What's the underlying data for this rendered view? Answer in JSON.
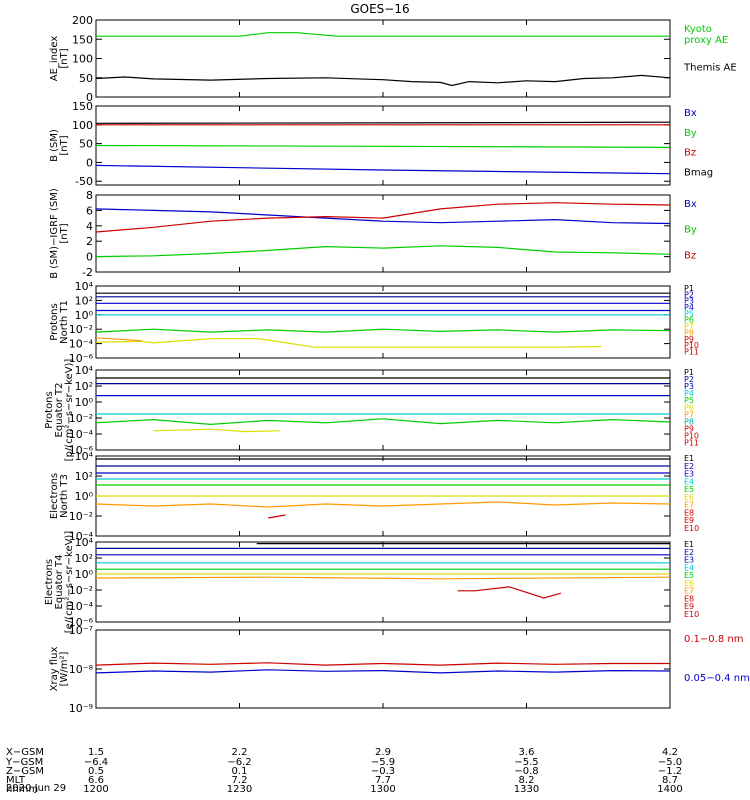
{
  "title": "GOES−16",
  "date_label": "2020 Jun 29",
  "colors": {
    "black": "#000000",
    "blue": "#0000cc",
    "green": "#00cc00",
    "red": "#cc0000",
    "cyan": "#00cccc",
    "yellow": "#dddd00",
    "orange": "#ff9900",
    "navy": "#000099",
    "purple": "#9900cc",
    "teal": "#00aaaa"
  },
  "chart_data": [
    {
      "type": "line",
      "ylabel": "AE_index\n[nT]",
      "ylim": [
        0,
        200
      ],
      "yscale": "linear",
      "yticks": [
        0,
        50,
        100,
        150,
        200
      ],
      "legend_placement": "right",
      "series": [
        {
          "name": "Kyoto\nproxy AE",
          "color": "#00cc00",
          "x": [
            0,
            0.25,
            0.3,
            0.35,
            0.42,
            1
          ],
          "y": [
            158,
            158,
            167,
            167,
            158,
            158
          ]
        },
        {
          "name": "Themis AE",
          "color": "#000000",
          "x": [
            0,
            0.05,
            0.1,
            0.2,
            0.3,
            0.4,
            0.5,
            0.55,
            0.6,
            0.62,
            0.65,
            0.7,
            0.75,
            0.8,
            0.85,
            0.9,
            0.95,
            1
          ],
          "y": [
            48,
            52,
            47,
            44,
            48,
            50,
            45,
            40,
            38,
            30,
            40,
            37,
            42,
            40,
            48,
            50,
            56,
            50
          ]
        }
      ]
    },
    {
      "type": "line",
      "ylabel": "B (SM)\n[nT]",
      "ylim": [
        -60,
        150
      ],
      "yscale": "linear",
      "yticks": [
        -50,
        0,
        50,
        100,
        150
      ],
      "legend_placement": "right",
      "series": [
        {
          "name": "Bx",
          "color": "#0000cc",
          "x": [
            0,
            0.5,
            1
          ],
          "y": [
            -8,
            -20,
            -30
          ]
        },
        {
          "name": "By",
          "color": "#00cc00",
          "x": [
            0,
            0.5,
            1
          ],
          "y": [
            45,
            43,
            40
          ]
        },
        {
          "name": "Bz",
          "color": "#cc0000",
          "x": [
            0,
            0.5,
            1
          ],
          "y": [
            100,
            100,
            100
          ]
        },
        {
          "name": "Bmag",
          "color": "#000000",
          "x": [
            0,
            0.5,
            1
          ],
          "y": [
            104,
            105,
            107
          ]
        }
      ]
    },
    {
      "type": "line",
      "ylabel": "B (SM)−IGRF (SM)\n[nT]",
      "ylim": [
        -2,
        8
      ],
      "yscale": "linear",
      "yticks": [
        -2,
        0,
        2,
        4,
        6,
        8
      ],
      "legend_placement": "right",
      "series": [
        {
          "name": "Bx",
          "color": "#0000cc",
          "x": [
            0,
            0.1,
            0.2,
            0.3,
            0.4,
            0.5,
            0.6,
            0.7,
            0.8,
            0.9,
            1
          ],
          "y": [
            6.2,
            6.0,
            5.8,
            5.4,
            5.0,
            4.6,
            4.4,
            4.6,
            4.8,
            4.4,
            4.3
          ]
        },
        {
          "name": "By",
          "color": "#00cc00",
          "x": [
            0,
            0.1,
            0.2,
            0.3,
            0.4,
            0.5,
            0.6,
            0.7,
            0.8,
            0.9,
            1
          ],
          "y": [
            0.0,
            0.1,
            0.4,
            0.8,
            1.3,
            1.1,
            1.4,
            1.2,
            0.6,
            0.5,
            0.3
          ]
        },
        {
          "name": "Bz",
          "color": "#cc0000",
          "x": [
            0,
            0.1,
            0.2,
            0.3,
            0.4,
            0.5,
            0.6,
            0.7,
            0.8,
            0.9,
            1
          ],
          "y": [
            3.2,
            3.8,
            4.6,
            5.0,
            5.2,
            5.0,
            6.2,
            6.8,
            7.0,
            6.8,
            6.7
          ]
        }
      ]
    },
    {
      "type": "line",
      "ylabel": "Protons\nNorth T1",
      "ylim": [
        -6,
        4
      ],
      "yscale": "log",
      "yticks": [
        -6,
        -4,
        -2,
        0,
        2,
        4
      ],
      "legend_placement": "right",
      "series": [
        {
          "name": "P1",
          "color": "#000000",
          "x": [
            0,
            1
          ],
          "y": [
            3.0,
            3.0
          ]
        },
        {
          "name": "P2",
          "color": "#000099",
          "x": [
            0,
            1
          ],
          "y": [
            2.5,
            2.5
          ]
        },
        {
          "name": "P3",
          "color": "#0000cc",
          "x": [
            0,
            1
          ],
          "y": [
            1.6,
            1.6
          ]
        },
        {
          "name": "P4",
          "color": "#0000cc",
          "x": [
            0,
            1
          ],
          "y": [
            0.6,
            0.6
          ]
        },
        {
          "name": "P5",
          "color": "#00cccc",
          "x": [
            0,
            1
          ],
          "y": [
            0.0,
            0.0
          ]
        },
        {
          "name": "P6",
          "color": "#00cc00",
          "x": [
            0,
            0.1,
            0.2,
            0.3,
            0.4,
            0.5,
            0.6,
            0.7,
            0.8,
            0.9,
            1
          ],
          "y": [
            -2.4,
            -2.0,
            -2.4,
            -2.1,
            -2.4,
            -2.0,
            -2.3,
            -2.1,
            -2.4,
            -2.1,
            -2.2
          ]
        },
        {
          "name": "P7",
          "color": "#dddd00",
          "x": [
            0.0,
            0.08,
            0.1,
            0.2,
            0.28,
            0.3,
            0.38,
            0.8,
            0.88
          ],
          "y": [
            -3.8,
            -3.7,
            -3.9,
            -3.3,
            -3.3,
            -3.5,
            -4.5,
            -4.5,
            -4.4
          ]
        },
        {
          "name": "P8",
          "color": "#ff9900",
          "x": [
            0,
            0.08
          ],
          "y": [
            -3.2,
            -3.6
          ]
        },
        {
          "name": "P9",
          "color": "#cc0000",
          "x": [],
          "y": []
        },
        {
          "name": "P10",
          "color": "#cc0000",
          "x": [],
          "y": []
        },
        {
          "name": "P11",
          "color": "#cc0000",
          "x": [],
          "y": []
        }
      ]
    },
    {
      "type": "line",
      "ylabel": "Protons\nEquator T2\n[p/(cm²−s−sr−keV)]",
      "ylim": [
        -6,
        4
      ],
      "yscale": "log",
      "yticks": [
        -6,
        -4,
        -2,
        0,
        2,
        4
      ],
      "legend_placement": "right",
      "series": [
        {
          "name": "P1",
          "color": "#000000",
          "x": [
            0,
            1
          ],
          "y": [
            3.0,
            3.0
          ]
        },
        {
          "name": "P2",
          "color": "#000099",
          "x": [
            0,
            1
          ],
          "y": [
            2.3,
            2.3
          ]
        },
        {
          "name": "P3",
          "color": "#0000cc",
          "x": [
            0,
            1
          ],
          "y": [
            0.8,
            0.8
          ]
        },
        {
          "name": "P4",
          "color": "#00cccc",
          "x": [
            0,
            1
          ],
          "y": [
            -1.5,
            -1.5
          ]
        },
        {
          "name": "P5",
          "color": "#00cc00",
          "x": [
            0,
            0.1,
            0.2,
            0.3,
            0.4,
            0.5,
            0.6,
            0.7,
            0.8,
            0.9,
            1
          ],
          "y": [
            -2.6,
            -2.2,
            -2.8,
            -2.3,
            -2.6,
            -2.1,
            -2.7,
            -2.3,
            -2.6,
            -2.2,
            -2.5
          ]
        },
        {
          "name": "P6",
          "color": "#dddd00",
          "x": [
            0.1,
            0.2,
            0.26,
            0.32
          ],
          "y": [
            -3.6,
            -3.4,
            -3.7,
            -3.6
          ]
        },
        {
          "name": "P7",
          "color": "#ff9900",
          "x": [],
          "y": []
        },
        {
          "name": "P8",
          "color": "#00aaaa",
          "x": [],
          "y": []
        },
        {
          "name": "P9",
          "color": "#cc0000",
          "x": [],
          "y": []
        },
        {
          "name": "P10",
          "color": "#cc0000",
          "x": [],
          "y": []
        },
        {
          "name": "P11",
          "color": "#cc0000",
          "x": [],
          "y": []
        }
      ]
    },
    {
      "type": "line",
      "ylabel": "Electrons\nNorth T3",
      "ylim": [
        -4,
        4
      ],
      "yscale": "log",
      "yticks": [
        -4,
        -2,
        0,
        2,
        4
      ],
      "legend_placement": "right",
      "series": [
        {
          "name": "E1",
          "color": "#000000",
          "x": [
            0,
            1
          ],
          "y": [
            3.7,
            3.7
          ]
        },
        {
          "name": "E2",
          "color": "#000099",
          "x": [
            0,
            1
          ],
          "y": [
            3.0,
            3.0
          ]
        },
        {
          "name": "E3",
          "color": "#0000cc",
          "x": [
            0,
            1
          ],
          "y": [
            2.3,
            2.3
          ]
        },
        {
          "name": "E4",
          "color": "#00cccc",
          "x": [
            0,
            1
          ],
          "y": [
            1.7,
            1.7
          ]
        },
        {
          "name": "E5",
          "color": "#00cc00",
          "x": [
            0,
            1
          ],
          "y": [
            1.1,
            1.1
          ]
        },
        {
          "name": "E6",
          "color": "#dddd00",
          "x": [
            0,
            1
          ],
          "y": [
            0.0,
            0.0
          ]
        },
        {
          "name": "E7",
          "color": "#ff9900",
          "x": [
            0,
            0.1,
            0.2,
            0.3,
            0.4,
            0.5,
            0.6,
            0.7,
            0.8,
            0.9,
            1
          ],
          "y": [
            -0.8,
            -1.0,
            -0.8,
            -1.1,
            -0.8,
            -1.0,
            -0.8,
            -0.6,
            -0.9,
            -0.7,
            -0.8
          ]
        },
        {
          "name": "E8",
          "color": "#cc0000",
          "x": [
            0.3,
            0.33
          ],
          "y": [
            -2.2,
            -1.9
          ]
        },
        {
          "name": "E9",
          "color": "#cc0000",
          "x": [],
          "y": []
        },
        {
          "name": "E10",
          "color": "#cc0000",
          "x": [],
          "y": []
        }
      ]
    },
    {
      "type": "line",
      "ylabel": "Electrons\nEquator T4\n[e/(cm²−s−sr−keV)]",
      "ylim": [
        -6,
        4
      ],
      "yscale": "log",
      "yticks": [
        -6,
        -4,
        -2,
        0,
        2,
        4
      ],
      "legend_placement": "right",
      "series": [
        {
          "name": "E1",
          "color": "#000000",
          "x": [
            0.28,
            0.3,
            0.72,
            1
          ],
          "y": [
            3.8,
            3.8,
            3.8,
            3.8
          ]
        },
        {
          "name": "E2",
          "color": "#000099",
          "x": [
            0,
            1
          ],
          "y": [
            3.2,
            3.2
          ]
        },
        {
          "name": "E3",
          "color": "#0000cc",
          "x": [
            0,
            1
          ],
          "y": [
            2.4,
            2.4
          ]
        },
        {
          "name": "E4",
          "color": "#00cccc",
          "x": [
            0,
            1
          ],
          "y": [
            1.4,
            1.4
          ]
        },
        {
          "name": "E5",
          "color": "#00cc00",
          "x": [
            0,
            1
          ],
          "y": [
            0.6,
            0.6
          ]
        },
        {
          "name": "E6",
          "color": "#dddd00",
          "x": [
            0,
            1
          ],
          "y": [
            0.0,
            0.0
          ]
        },
        {
          "name": "E7",
          "color": "#ff9900",
          "x": [
            0,
            0.3,
            0.6,
            1
          ],
          "y": [
            -0.5,
            -0.4,
            -0.6,
            -0.4
          ]
        },
        {
          "name": "E8",
          "color": "#cc0000",
          "x": [
            0.63,
            0.66,
            0.72,
            0.78,
            0.81
          ],
          "y": [
            -2.1,
            -2.1,
            -1.6,
            -3.0,
            -2.4
          ]
        },
        {
          "name": "E9",
          "color": "#cc0000",
          "x": [],
          "y": []
        },
        {
          "name": "E10",
          "color": "#cc0000",
          "x": [],
          "y": []
        }
      ]
    },
    {
      "type": "line",
      "ylabel": "Xray flux\n[W/m²]",
      "ylim": [
        -9,
        -7
      ],
      "yscale": "log",
      "yticks": [
        -9,
        -8,
        -7
      ],
      "legend_placement": "right",
      "series": [
        {
          "name": "0.1−0.8 nm",
          "color": "#cc0000",
          "x": [
            0,
            0.1,
            0.2,
            0.3,
            0.4,
            0.5,
            0.6,
            0.7,
            0.8,
            0.9,
            1
          ],
          "y": [
            -7.9,
            -7.85,
            -7.88,
            -7.84,
            -7.9,
            -7.86,
            -7.9,
            -7.85,
            -7.88,
            -7.86,
            -7.86
          ]
        },
        {
          "name": "0.05−0.4 nm",
          "color": "#0000cc",
          "x": [
            0,
            0.1,
            0.2,
            0.3,
            0.4,
            0.5,
            0.6,
            0.7,
            0.8,
            0.9,
            1
          ],
          "y": [
            -8.1,
            -8.05,
            -8.08,
            -8.02,
            -8.06,
            -8.04,
            -8.1,
            -8.05,
            -8.08,
            -8.04,
            -8.05
          ]
        }
      ]
    }
  ],
  "x_axis": {
    "row_labels": [
      "X−GSM",
      "Y−GSM",
      "Z−GSM",
      "MLT",
      "hhmm"
    ],
    "columns": [
      [
        "1.5",
        "−6.4",
        "0.5",
        "6.6",
        "1200"
      ],
      [
        "2.2",
        "−6.2",
        "0.1",
        "7.2",
        "1230"
      ],
      [
        "2.9",
        "−5.9",
        "−0.3",
        "7.7",
        "1300"
      ],
      [
        "3.6",
        "−5.5",
        "−0.8",
        "8.2",
        "1330"
      ],
      [
        "4.2",
        "−5.0",
        "−1.2",
        "8.7",
        "1400"
      ]
    ]
  }
}
